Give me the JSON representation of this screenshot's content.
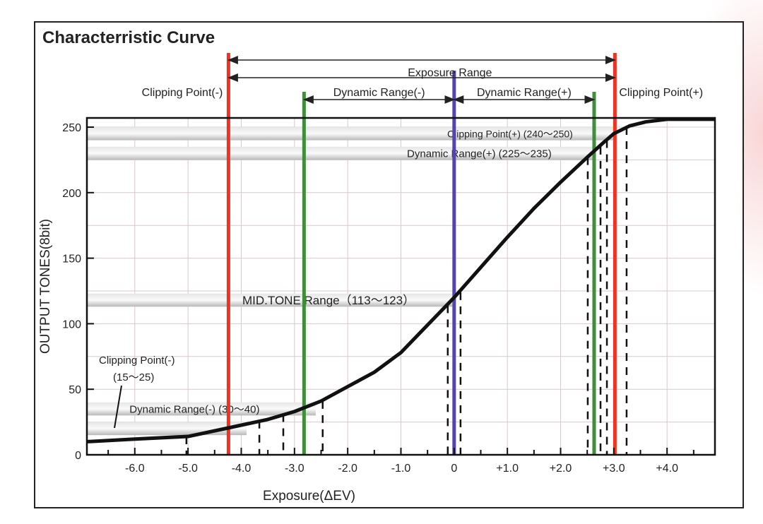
{
  "chart_data": {
    "type": "line",
    "title": "Characterristic Curve",
    "xlabel": "Exposure(ΔEV)",
    "ylabel": "OUTPUT TONES(8bit)",
    "xlim": [
      -6.9,
      4.9
    ],
    "ylim": [
      0,
      257
    ],
    "grid": true,
    "x_ticks": [
      -6,
      -5,
      -4,
      -3,
      -2,
      -1,
      0,
      1,
      2,
      3,
      4
    ],
    "x_tick_labels": [
      "-6.0",
      "-5.0",
      "-4.0",
      "-3.0",
      "-2.0",
      "-1.0",
      "0",
      "+1.0",
      "+2.0",
      "+3.0",
      "+4.0"
    ],
    "y_ticks": [
      0,
      50,
      100,
      150,
      200,
      250
    ],
    "y_tick_labels": [
      "0",
      "50",
      "100",
      "150",
      "200",
      "250"
    ],
    "series": [
      {
        "x": [
          -6.9,
          -6,
          -5,
          -4.3,
          -3.5,
          -3,
          -2.5,
          -2,
          -1.5,
          -1,
          -0.5,
          0,
          0.5,
          1,
          1.5,
          2,
          2.5,
          2.8,
          3,
          3.3,
          3.6,
          4,
          4.9
        ],
        "y": [
          10,
          12,
          14,
          20,
          27,
          33,
          41,
          52,
          63,
          78,
          99,
          120,
          143,
          166,
          188,
          208,
          227,
          238,
          245,
          251,
          254,
          256,
          256
        ],
        "color": "#111111"
      }
    ],
    "vertical_lines": [
      {
        "x": -4.24,
        "color": "#ee3322"
      },
      {
        "x": 3.02,
        "color": "#ee3322"
      },
      {
        "x": -2.82,
        "color": "#3f8f3a"
      },
      {
        "x": 2.63,
        "color": "#3f8f3a"
      },
      {
        "x": 0,
        "color": "#5544aa"
      }
    ],
    "dashed_lines": [
      {
        "x": -5.03,
        "y": 14
      },
      {
        "x": -3.66,
        "y": 26
      },
      {
        "x": -3.21,
        "y": 31
      },
      {
        "x": -2.47,
        "y": 41
      },
      {
        "x": -0.12,
        "y": 114
      },
      {
        "x": 0.12,
        "y": 124
      },
      {
        "x": 2.51,
        "y": 227
      },
      {
        "x": 2.75,
        "y": 235
      },
      {
        "x": 2.87,
        "y": 240
      },
      {
        "x": 3.24,
        "y": 250
      }
    ],
    "bands": [
      {
        "label": "Clipping Point(+) (240～250)",
        "range": [
          240,
          250
        ],
        "end_x": 3.0
      },
      {
        "label": "Dynamic Range(+) (225～235)",
        "range": [
          225,
          235
        ],
        "end_x": 2.6
      },
      {
        "label": "MID.TONE Range（113～123）",
        "range": [
          113,
          123
        ],
        "end_x": 0
      },
      {
        "label": "Dynamic Range(-) (30～40)",
        "range": [
          30,
          40
        ],
        "end_x": -2.6
      },
      {
        "label": "",
        "range": [
          15,
          25
        ],
        "end_x": -3.9
      }
    ],
    "annotations": {
      "exposure_range": "Exposure Range",
      "clip_minus": "Clipping Point(-)",
      "clip_plus": "Clipping Point(+)",
      "dr_minus": "Dynamic Range(-)",
      "dr_plus": "Dynamic Range(+)",
      "clip_minus_band_1": "Clipping Point(-)",
      "clip_minus_band_2": "(15～25)"
    }
  }
}
